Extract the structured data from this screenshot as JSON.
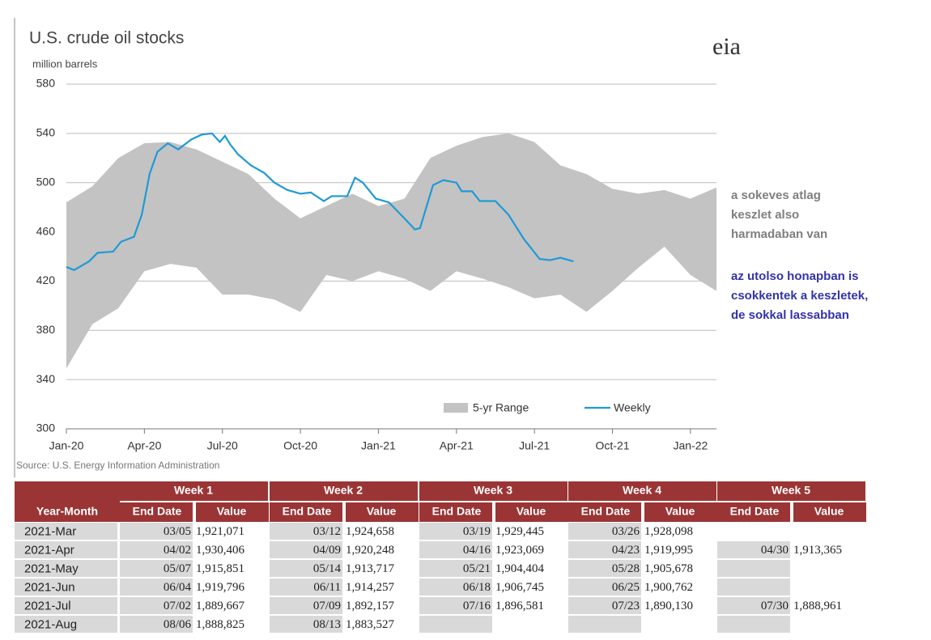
{
  "chart_data": {
    "type": "line",
    "title": "U.S. crude oil stocks",
    "y_label": "million barrels",
    "source": "Source: U.S. Energy Information Administration",
    "logo": "eia",
    "xlim": [
      0,
      25
    ],
    "xticks": [
      {
        "value": 0,
        "label": "Jan-20"
      },
      {
        "value": 3,
        "label": "Apr-20"
      },
      {
        "value": 6,
        "label": "Jul-20"
      },
      {
        "value": 9,
        "label": "Oct-20"
      },
      {
        "value": 12,
        "label": "Jan-21"
      },
      {
        "value": 15,
        "label": "Apr-21"
      },
      {
        "value": 18,
        "label": "Jul-21"
      },
      {
        "value": 21,
        "label": "Oct-21"
      },
      {
        "value": 24,
        "label": "Jan-22"
      }
    ],
    "ylim": [
      300,
      580
    ],
    "yticks": [
      300,
      340,
      380,
      420,
      460,
      500,
      540,
      580
    ],
    "grid": true,
    "series": [
      {
        "name": "5-yr Range",
        "kind": "range",
        "color": "#c3c3c3",
        "x": [
          0,
          1,
          2,
          3,
          4,
          5,
          6,
          7,
          8,
          9,
          10,
          11,
          12,
          13,
          14,
          15,
          16,
          17,
          18,
          19,
          20,
          21,
          22,
          23,
          24,
          25
        ],
        "low": [
          349,
          385,
          398,
          428,
          434,
          431,
          409,
          409,
          405,
          395,
          425,
          420,
          428,
          422,
          412,
          428,
          422,
          415,
          406,
          409,
          395,
          412,
          431,
          448,
          425,
          412
        ],
        "high": [
          484,
          497,
          520,
          532,
          533,
          527,
          517,
          507,
          487,
          471,
          481,
          491,
          481,
          487,
          520,
          530,
          537,
          540,
          533,
          514,
          507,
          495,
          491,
          494,
          487,
          496
        ]
      },
      {
        "name": "Weekly",
        "color": "#1e9ad6",
        "x": [
          0,
          0.3,
          0.87,
          1.2,
          1.8,
          2.1,
          2.6,
          2.9,
          3.2,
          3.5,
          3.9,
          4.3,
          4.8,
          5.2,
          5.6,
          5.9,
          6.1,
          6.3,
          6.6,
          7.1,
          7.6,
          8.0,
          8.5,
          9.0,
          9.4,
          9.9,
          10.2,
          10.8,
          11.1,
          11.4,
          11.9,
          12.4,
          13.0,
          13.4,
          13.6,
          14.1,
          14.5,
          15.0,
          15.2,
          15.6,
          15.9,
          16.5,
          17.0,
          17.6,
          18.2,
          18.6,
          19.0,
          19.5
        ],
        "values": [
          431.5,
          429,
          436,
          443,
          444,
          452,
          456,
          474,
          507,
          525,
          532,
          527,
          535,
          539,
          540,
          533,
          538,
          531,
          523,
          514,
          508,
          500,
          494,
          491,
          492,
          485,
          489,
          489,
          504,
          500,
          487,
          484,
          471,
          462,
          463,
          498,
          502,
          500,
          493,
          493,
          485,
          485,
          474,
          454,
          438,
          437,
          439,
          436
        ]
      }
    ]
  },
  "annotations": [
    "a sokeves atlag keszlet also harmadaban van",
    "az utolso honapban is csokkentek a keszletek, de sokkal lassabban"
  ],
  "table": {
    "row_header": "Year-Month",
    "weeks": [
      "Week 1",
      "Week 2",
      "Week 3",
      "Week 4",
      "Week 5"
    ],
    "sub_headers": [
      "End Date",
      "Value"
    ],
    "rows": [
      {
        "month": "2021-Mar",
        "cells": [
          [
            "03/05",
            "1,921,071"
          ],
          [
            "03/12",
            "1,924,658"
          ],
          [
            "03/19",
            "1,929,445"
          ],
          [
            "03/26",
            "1,928,098"
          ],
          null
        ]
      },
      {
        "month": "2021-Apr",
        "cells": [
          [
            "04/02",
            "1,930,406"
          ],
          [
            "04/09",
            "1,920,248"
          ],
          [
            "04/16",
            "1,923,069"
          ],
          [
            "04/23",
            "1,919,995"
          ],
          [
            "04/30",
            "1,913,365"
          ]
        ]
      },
      {
        "month": "2021-May",
        "cells": [
          [
            "05/07",
            "1,915,851"
          ],
          [
            "05/14",
            "1,913,717"
          ],
          [
            "05/21",
            "1,904,404"
          ],
          [
            "05/28",
            "1,905,678"
          ],
          null
        ]
      },
      {
        "month": "2021-Jun",
        "cells": [
          [
            "06/04",
            "1,919,796"
          ],
          [
            "06/11",
            "1,914,257"
          ],
          [
            "06/18",
            "1,906,745"
          ],
          [
            "06/25",
            "1,900,762"
          ],
          null
        ]
      },
      {
        "month": "2021-Jul",
        "cells": [
          [
            "07/02",
            "1,889,667"
          ],
          [
            "07/09",
            "1,892,157"
          ],
          [
            "07/16",
            "1,896,581"
          ],
          [
            "07/23",
            "1,890,130"
          ],
          [
            "07/30",
            "1,888,961"
          ]
        ]
      },
      {
        "month": "2021-Aug",
        "cells": [
          [
            "08/06",
            "1,888,825"
          ],
          [
            "08/13",
            "1,883,527"
          ],
          null,
          null,
          null
        ]
      }
    ]
  }
}
